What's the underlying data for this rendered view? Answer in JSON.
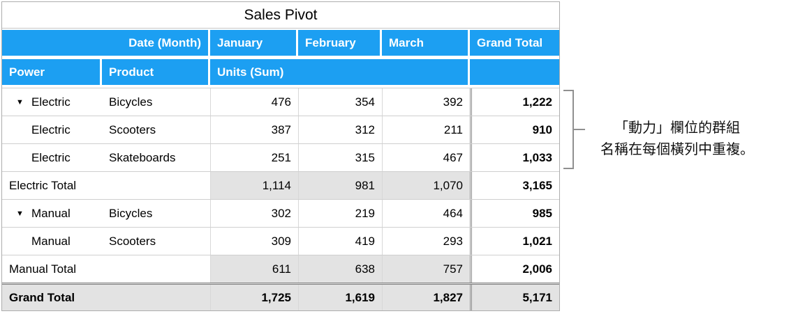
{
  "table": {
    "title": "Sales Pivot",
    "header1": {
      "date_label": "Date (Month)",
      "months": [
        "January",
        "February",
        "March"
      ],
      "grand_total": "Grand Total"
    },
    "header2": {
      "power": "Power",
      "product": "Product",
      "units": "Units (Sum)"
    },
    "rows": [
      {
        "type": "data",
        "power": "Electric",
        "product": "Bicycles",
        "values": [
          "476",
          "354",
          "392"
        ],
        "total": "1,222"
      },
      {
        "type": "data",
        "power": "Electric",
        "product": "Scooters",
        "values": [
          "387",
          "312",
          "211"
        ],
        "total": "910"
      },
      {
        "type": "data",
        "power": "Electric",
        "product": "Skateboards",
        "values": [
          "251",
          "315",
          "467"
        ],
        "total": "1,033"
      },
      {
        "type": "subtotal",
        "label": "Electric Total",
        "values": [
          "1,114",
          "981",
          "1,070"
        ],
        "total": "3,165"
      },
      {
        "type": "data",
        "power": "Manual",
        "product": "Bicycles",
        "values": [
          "302",
          "219",
          "464"
        ],
        "total": "985"
      },
      {
        "type": "data",
        "power": "Manual",
        "product": "Scooters",
        "values": [
          "309",
          "419",
          "293"
        ],
        "total": "1,021"
      },
      {
        "type": "subtotal",
        "label": "Manual Total",
        "values": [
          "611",
          "638",
          "757"
        ],
        "total": "2,006"
      },
      {
        "type": "grand_total",
        "label": "Grand Total",
        "values": [
          "1,725",
          "1,619",
          "1,827"
        ],
        "total": "5,171"
      }
    ]
  },
  "icons": {
    "disclosure": "▼"
  },
  "annotation": {
    "line1": "「動力」欄位的群組",
    "line2": "名稱在每個橫列中重複。"
  },
  "colors": {
    "header_blue": "#1C9FF2",
    "header_text": "#FFFFFF",
    "total_shading": "#E3E3E3",
    "grid_line": "#CFCFCF",
    "strong_border": "#808080"
  }
}
